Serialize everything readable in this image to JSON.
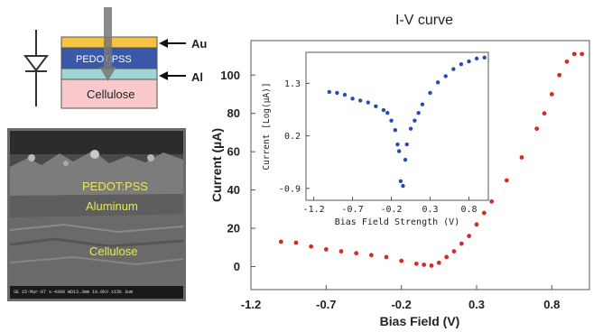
{
  "device": {
    "layers": {
      "au": "Au",
      "pedot": "PEDOT:PSS",
      "al": "Al",
      "cellulose": "Cellulose"
    },
    "colors": {
      "au": "#f5c242",
      "pedot": "#3b57a8",
      "al": "#9fd6d3",
      "cellulose": "#f9c9cc",
      "probe": "#777777"
    }
  },
  "sem": {
    "labels": {
      "pedot": "PEDOT:PSS",
      "aluminum": "Aluminum",
      "cellulose": "Cellulose"
    },
    "info_bar": "SE   15-Mar-07   s-4300 WD13.3mm 10.0kV x15k   3um"
  },
  "chart_data": [
    {
      "type": "scatter",
      "title": "I-V curve",
      "xlabel": "Bias Field (V)",
      "ylabel": "Current (µA)",
      "xlim": [
        -1.2,
        1.05
      ],
      "ylim": [
        -12,
        118
      ],
      "xticks": [
        "-1.2",
        "-0.7",
        "-0.2",
        "0.3",
        "0.8"
      ],
      "yticks": [
        "0",
        "20",
        "40",
        "60",
        "80",
        "100"
      ],
      "color": "#d42a2a",
      "series": [
        {
          "x": [
            -1.0,
            -0.9,
            -0.8,
            -0.7,
            -0.6,
            -0.5,
            -0.4,
            -0.3,
            -0.2,
            -0.1,
            -0.05,
            0.0,
            0.05,
            0.1,
            0.15,
            0.2,
            0.25,
            0.3,
            0.35,
            0.4,
            0.5,
            0.6,
            0.7,
            0.75,
            0.8,
            0.85,
            0.9,
            0.95,
            1.0
          ],
          "y": [
            13,
            12.5,
            10.5,
            9,
            8,
            7,
            6,
            5,
            3,
            1.5,
            1,
            0.5,
            2,
            5,
            8,
            12,
            16,
            22,
            28,
            34,
            45,
            57,
            72,
            80,
            90,
            100,
            107,
            111,
            111
          ]
        }
      ]
    },
    {
      "type": "scatter",
      "title": "",
      "xlabel": "Bias Field Strength (V)",
      "ylabel": "Current [Log(µA)]",
      "xlim": [
        -1.3,
        1.05
      ],
      "ylim": [
        -1.15,
        1.95
      ],
      "xticks": [
        "-1.2",
        "-0.7",
        "-0.2",
        "0.3",
        "0.8"
      ],
      "yticks": [
        "-0.9",
        "0.2",
        "1.3"
      ],
      "color": "#2a4bb0",
      "series": [
        {
          "x": [
            -1.0,
            -0.9,
            -0.8,
            -0.7,
            -0.6,
            -0.5,
            -0.4,
            -0.3,
            -0.25,
            -0.2,
            -0.15,
            -0.12,
            -0.1,
            -0.08,
            -0.05,
            -0.02,
            0.0,
            0.05,
            0.1,
            0.15,
            0.2,
            0.3,
            0.4,
            0.5,
            0.6,
            0.7,
            0.8,
            0.9,
            1.0
          ],
          "y": [
            1.12,
            1.1,
            1.06,
            0.98,
            0.94,
            0.9,
            0.82,
            0.74,
            0.68,
            0.52,
            0.32,
            0.02,
            -0.12,
            -0.75,
            -0.85,
            -0.3,
            0.02,
            0.35,
            0.52,
            0.68,
            0.86,
            1.1,
            1.32,
            1.45,
            1.6,
            1.7,
            1.76,
            1.82,
            1.84
          ]
        }
      ]
    }
  ]
}
